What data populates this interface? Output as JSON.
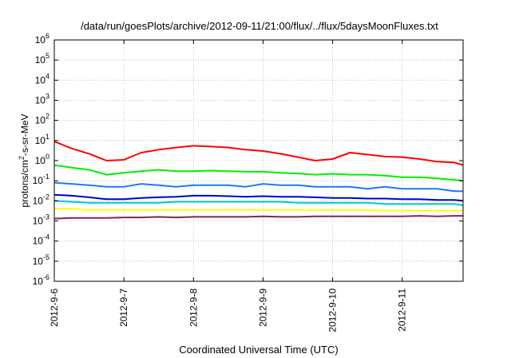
{
  "chart_data": {
    "type": "line",
    "title": "/data/run/goesPlots/archive/2012-09-11/21:00/flux/../flux/5daysMoonFluxes.txt",
    "xlabel": "Coordinated Universal Time (UTC)",
    "ylabel_main": "protons/cm",
    "ylabel_sup": "2",
    "ylabel_tail": "-s-sr-MeV",
    "x_scale": "time",
    "xlim": [
      "2012-09-06T00:00",
      "2012-09-11T21:00"
    ],
    "x_ticks": [
      "2012-9-6",
      "2012-9-7",
      "2012-9-8",
      "2012-9-9",
      "2012-9-10",
      "2012-9-11"
    ],
    "y_scale": "log",
    "ylim": [
      1e-06,
      1000000.0
    ],
    "y_ticks": [
      {
        "base": "10",
        "exp": "-6"
      },
      {
        "base": "10",
        "exp": "-5"
      },
      {
        "base": "10",
        "exp": "-4"
      },
      {
        "base": "10",
        "exp": "-3"
      },
      {
        "base": "10",
        "exp": "-2"
      },
      {
        "base": "10",
        "exp": "-1"
      },
      {
        "base": "10",
        "exp": "0"
      },
      {
        "base": "10",
        "exp": "1"
      },
      {
        "base": "10",
        "exp": "2"
      },
      {
        "base": "10",
        "exp": "3"
      },
      {
        "base": "10",
        "exp": "4"
      },
      {
        "base": "10",
        "exp": "5"
      },
      {
        "base": "10",
        "exp": "6"
      }
    ],
    "grid": true,
    "legend": "none",
    "x": [
      "2012-09-06T00:00",
      "2012-09-06T06:00",
      "2012-09-06T12:00",
      "2012-09-06T18:00",
      "2012-09-07T00:00",
      "2012-09-07T06:00",
      "2012-09-07T12:00",
      "2012-09-07T18:00",
      "2012-09-08T00:00",
      "2012-09-08T06:00",
      "2012-09-08T12:00",
      "2012-09-08T18:00",
      "2012-09-09T00:00",
      "2012-09-09T06:00",
      "2012-09-09T12:00",
      "2012-09-09T18:00",
      "2012-09-10T00:00",
      "2012-09-10T06:00",
      "2012-09-10T12:00",
      "2012-09-10T18:00",
      "2012-09-11T00:00",
      "2012-09-11T06:00",
      "2012-09-11T12:00",
      "2012-09-11T18:00",
      "2012-09-11T21:00"
    ],
    "series": [
      {
        "color": "#ff0000",
        "values": [
          9,
          4,
          2.2,
          1.0,
          1.1,
          2.5,
          3.5,
          4.5,
          5.5,
          5,
          4.5,
          3.5,
          3,
          2.2,
          1.5,
          1.0,
          1.2,
          2.5,
          2.0,
          1.6,
          1.5,
          1.2,
          0.9,
          0.8,
          0.6
        ]
      },
      {
        "color": "#00ee00",
        "values": [
          0.6,
          0.45,
          0.35,
          0.2,
          0.25,
          0.3,
          0.35,
          0.3,
          0.3,
          0.32,
          0.3,
          0.28,
          0.28,
          0.25,
          0.23,
          0.2,
          0.22,
          0.2,
          0.2,
          0.18,
          0.15,
          0.15,
          0.13,
          0.11,
          0.1
        ]
      },
      {
        "color": "#1e78ff",
        "values": [
          0.08,
          0.07,
          0.06,
          0.05,
          0.05,
          0.07,
          0.06,
          0.05,
          0.06,
          0.06,
          0.06,
          0.05,
          0.07,
          0.06,
          0.06,
          0.05,
          0.05,
          0.05,
          0.04,
          0.05,
          0.04,
          0.04,
          0.04,
          0.03,
          0.03
        ]
      },
      {
        "color": "#0000cc",
        "values": [
          0.02,
          0.018,
          0.015,
          0.012,
          0.012,
          0.014,
          0.015,
          0.016,
          0.018,
          0.018,
          0.017,
          0.016,
          0.017,
          0.016,
          0.016,
          0.015,
          0.014,
          0.014,
          0.013,
          0.013,
          0.012,
          0.012,
          0.011,
          0.011,
          0.01
        ]
      },
      {
        "color": "#00c8c8",
        "values": [
          0.01,
          0.009,
          0.008,
          0.008,
          0.008,
          0.008,
          0.008,
          0.009,
          0.009,
          0.009,
          0.009,
          0.009,
          0.009,
          0.009,
          0.008,
          0.008,
          0.008,
          0.008,
          0.008,
          0.007,
          0.007,
          0.007,
          0.007,
          0.007,
          0.006
        ]
      },
      {
        "color": "#ffff00",
        "values": [
          0.004,
          0.004,
          0.0035,
          0.0035,
          0.0035,
          0.0035,
          0.0035,
          0.0035,
          0.0035,
          0.0035,
          0.0035,
          0.0035,
          0.0035,
          0.0035,
          0.0035,
          0.0035,
          0.0035,
          0.0035,
          0.0035,
          0.0033,
          0.0033,
          0.0033,
          0.0032,
          0.0032,
          0.0032
        ]
      },
      {
        "color": "#8b2252",
        "values": [
          0.0013,
          0.0014,
          0.0014,
          0.0014,
          0.0015,
          0.0015,
          0.0016,
          0.0015,
          0.0016,
          0.0016,
          0.0016,
          0.0016,
          0.0017,
          0.0016,
          0.0016,
          0.0017,
          0.0017,
          0.0017,
          0.0017,
          0.0017,
          0.0017,
          0.0018,
          0.0017,
          0.0018,
          0.0018
        ]
      }
    ]
  }
}
